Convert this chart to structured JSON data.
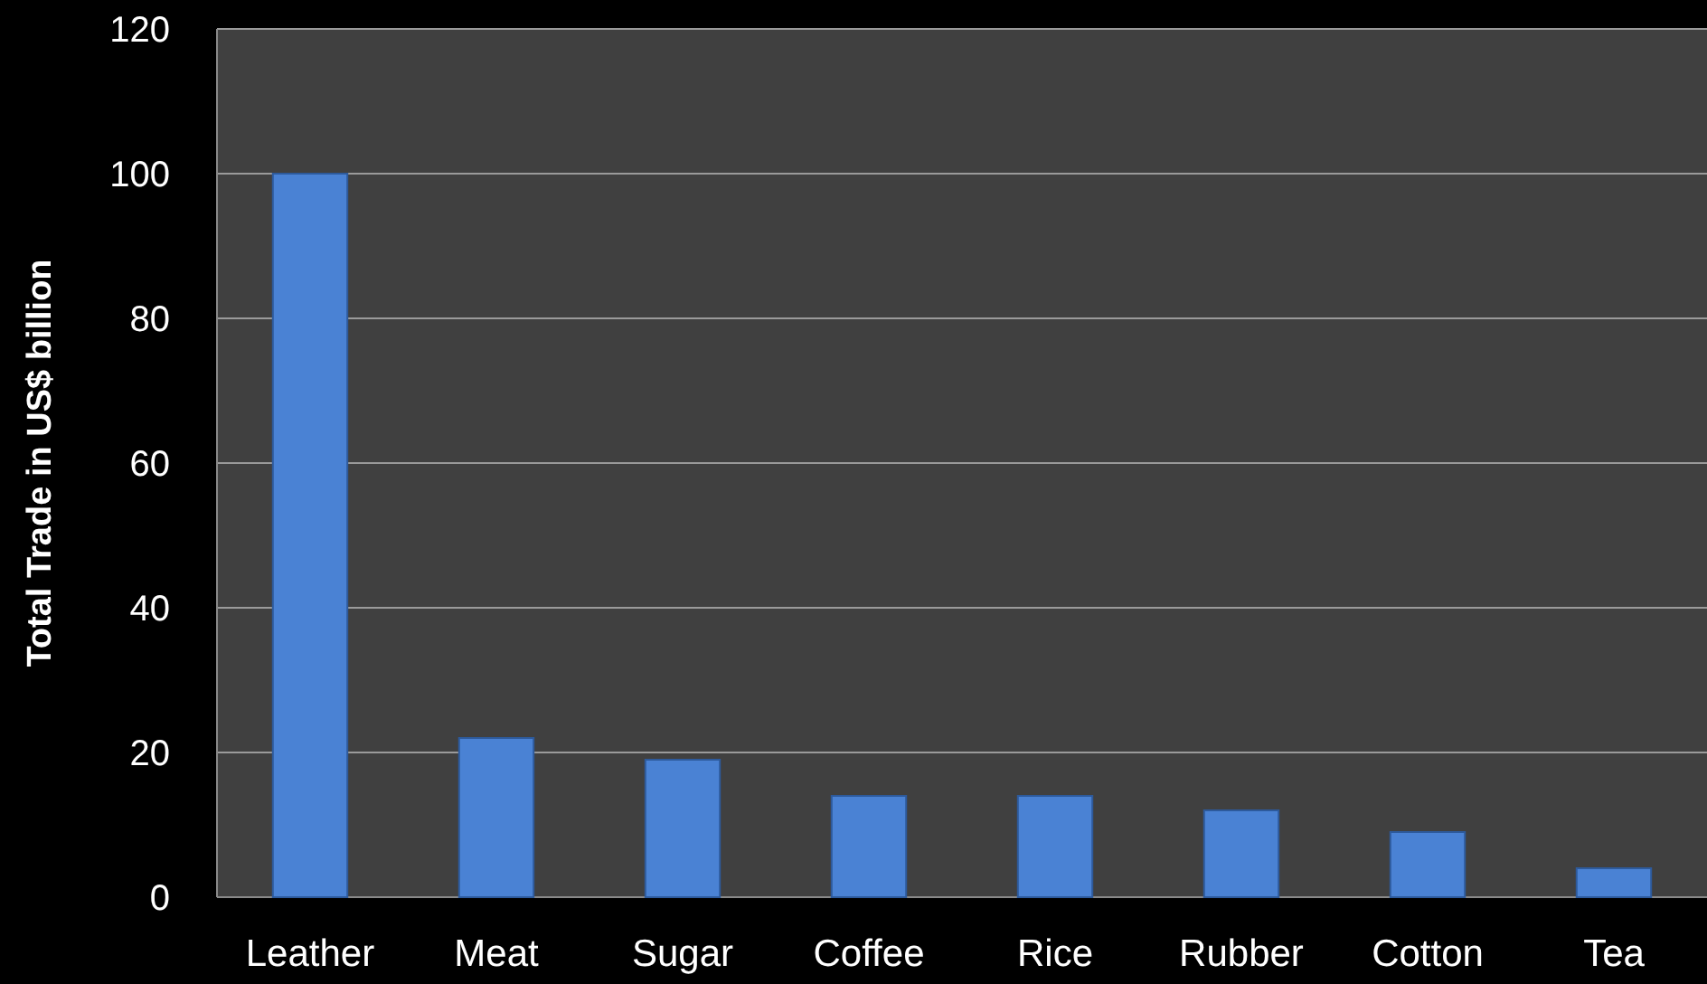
{
  "chart_data": {
    "type": "bar",
    "ylabel": "Total Trade in US$ billion",
    "categories": [
      "Leather",
      "Meat",
      "Sugar",
      "Coffee",
      "Rice",
      "Rubber",
      "Cotton",
      "Tea"
    ],
    "values": [
      100,
      22,
      19,
      14,
      14,
      12,
      9,
      4
    ],
    "color": "#4a82d4",
    "ylim": [
      0,
      120
    ],
    "yticks": [
      0,
      20,
      40,
      60,
      80,
      100,
      120
    ],
    "grid": "y"
  }
}
